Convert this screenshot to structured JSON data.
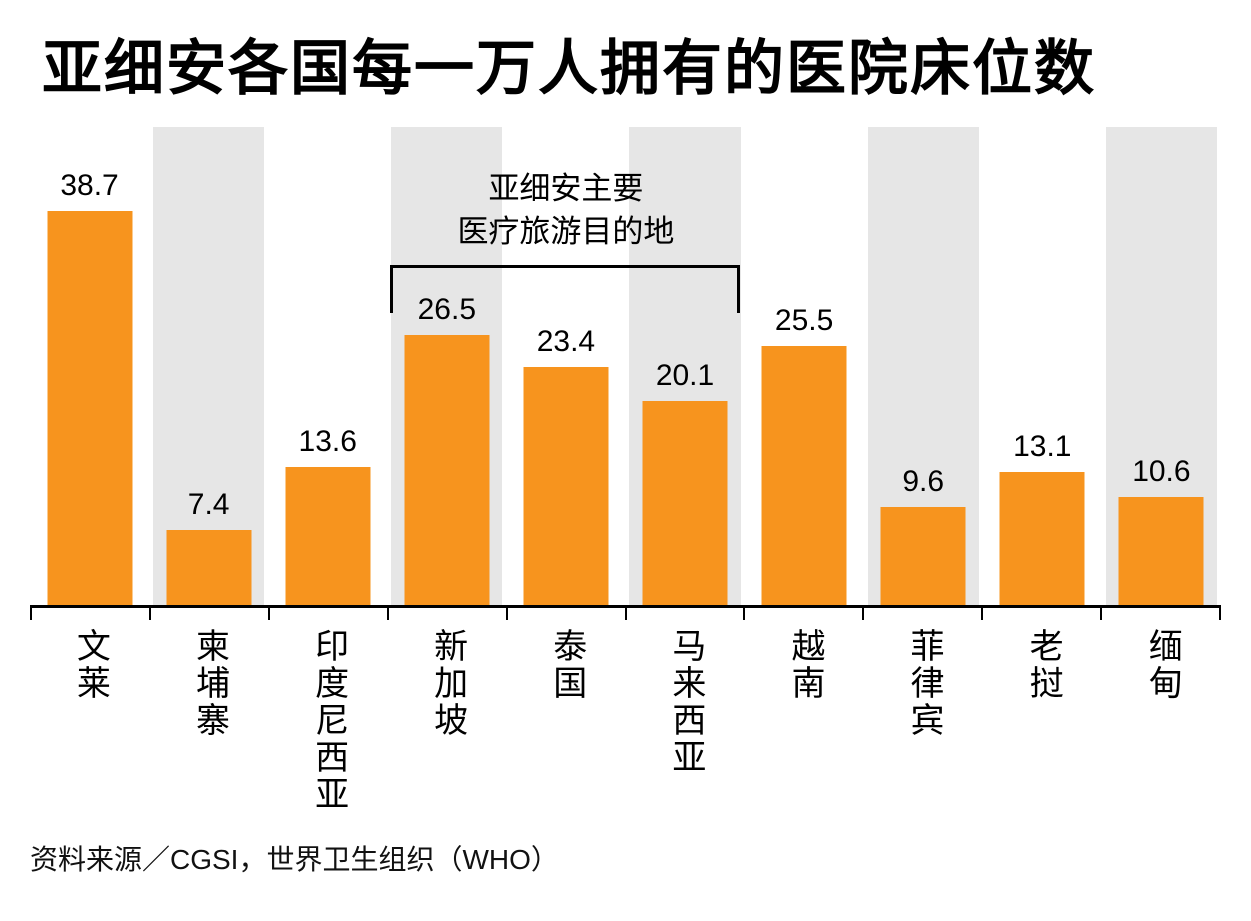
{
  "title": "亚细安各国每一万人拥有的医院床位数",
  "source": "资料来源／CGSI，世界卫生组织（WHO）",
  "annotation": {
    "line1": "亚细安主要",
    "line2": "医疗旅游目的地"
  },
  "colors": {
    "bar": "#F7941E",
    "stripe": "#E6E6E6",
    "axis": "#000000",
    "text": "#000000"
  },
  "chart_data": {
    "type": "bar",
    "title": "亚细安各国每一万人拥有的医院床位数",
    "categories": [
      "文莱",
      "柬埔寨",
      "印度尼西亚",
      "新加坡",
      "泰国",
      "马来西亚",
      "越南",
      "菲律宾",
      "老挝",
      "缅甸"
    ],
    "values": [
      38.7,
      7.4,
      13.6,
      26.5,
      23.4,
      20.1,
      25.5,
      9.6,
      13.1,
      10.6
    ],
    "xlabel": "",
    "ylabel": "",
    "ylim": [
      0,
      47
    ],
    "grid": false,
    "legend": "none",
    "data_labels": true,
    "annotation": {
      "text": [
        "亚细安主要",
        "医疗旅游目的地"
      ],
      "span_categories": [
        "新加坡",
        "泰国",
        "马来西亚"
      ]
    },
    "striped_background_columns": [
      1,
      3,
      5,
      7,
      9
    ]
  }
}
